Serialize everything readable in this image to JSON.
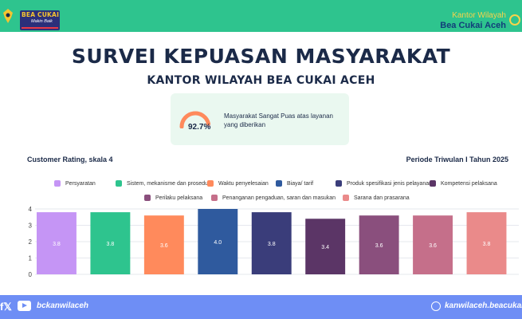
{
  "header": {
    "logo_title": "BEA CUKAI",
    "logo_subtitle": "Makin Baik",
    "office_line1": "Kantor Wilayah",
    "office_line2": "Bea Cukai Aceh",
    "bar_color": "#2ec48e"
  },
  "title": "SURVEI KEPUASAN MASYARAKAT",
  "subtitle": "KANTOR WILAYAH BEA CUKAI ACEH",
  "satisfaction": {
    "percent_label": "92.7%",
    "percent_value": 92.7,
    "text": "Masyarakat Sangat Puas atas layanan yang diberikan"
  },
  "chart_label_left": "Customer Rating, skala 4",
  "chart_label_right": "Periode Triwulan I Tahun 2025",
  "chart_data": {
    "type": "bar",
    "categories": [
      "Persyaratan",
      "Sistem, mekanisme dan prosedur",
      "Waktu penyelesaian",
      "Biaya/ tarif",
      "Produk spesifikasi jenis pelayanan",
      "Kompetensi pelaksana",
      "Perilaku pelaksana",
      "Penanganan pengaduan, saran dan masukan",
      "Sarana dan prasarana"
    ],
    "values": [
      3.8,
      3.8,
      3.6,
      4.0,
      3.8,
      3.4,
      3.6,
      3.6,
      3.8
    ],
    "value_labels": [
      "3.8",
      "3.8",
      "3.6",
      "4.0",
      "3.8",
      "3.4",
      "3.6",
      "3.6",
      "3.8"
    ],
    "colors": [
      "#c595f5",
      "#2ec48e",
      "#ff8a5c",
      "#2f5a9e",
      "#3a3d7a",
      "#5b3566",
      "#8a4f7d",
      "#c56f8a",
      "#ea8a8a"
    ],
    "yticks": [
      "0",
      "1",
      "2",
      "3",
      "4"
    ],
    "ylim": [
      0,
      4
    ],
    "legend_position": "top",
    "grid": true
  },
  "footer": {
    "social_handle": "bckanwilaceh",
    "website": "kanwilaceh.beacukai.go.id",
    "bar_color": "#6e8ef5"
  }
}
